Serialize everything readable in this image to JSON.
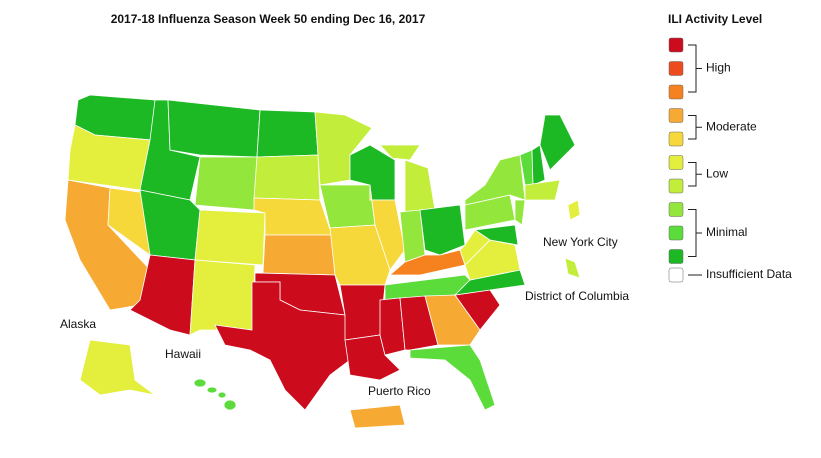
{
  "title": "2017-18 Influenza Season Week 50 ending Dec 16, 2017",
  "legend": {
    "title": "ILI Activity Level",
    "groups": [
      {
        "label": "High",
        "colors": [
          "#cc0b1d",
          "#ee4a1f",
          "#f6821f"
        ]
      },
      {
        "label": "Moderate",
        "colors": [
          "#f7aa33",
          "#f6d83a"
        ]
      },
      {
        "label": "Low",
        "colors": [
          "#e3ee3d",
          "#c2ee3b"
        ]
      },
      {
        "label": "Minimal",
        "colors": [
          "#93e63c",
          "#5bdc3a",
          "#1db924"
        ]
      }
    ],
    "insufficient": {
      "label": "Insufficient Data",
      "color": "#ffffff"
    }
  },
  "map_labels": [
    "Alaska",
    "Hawaii",
    "New York City",
    "District of Columbia",
    "Puerto Rico"
  ]
}
